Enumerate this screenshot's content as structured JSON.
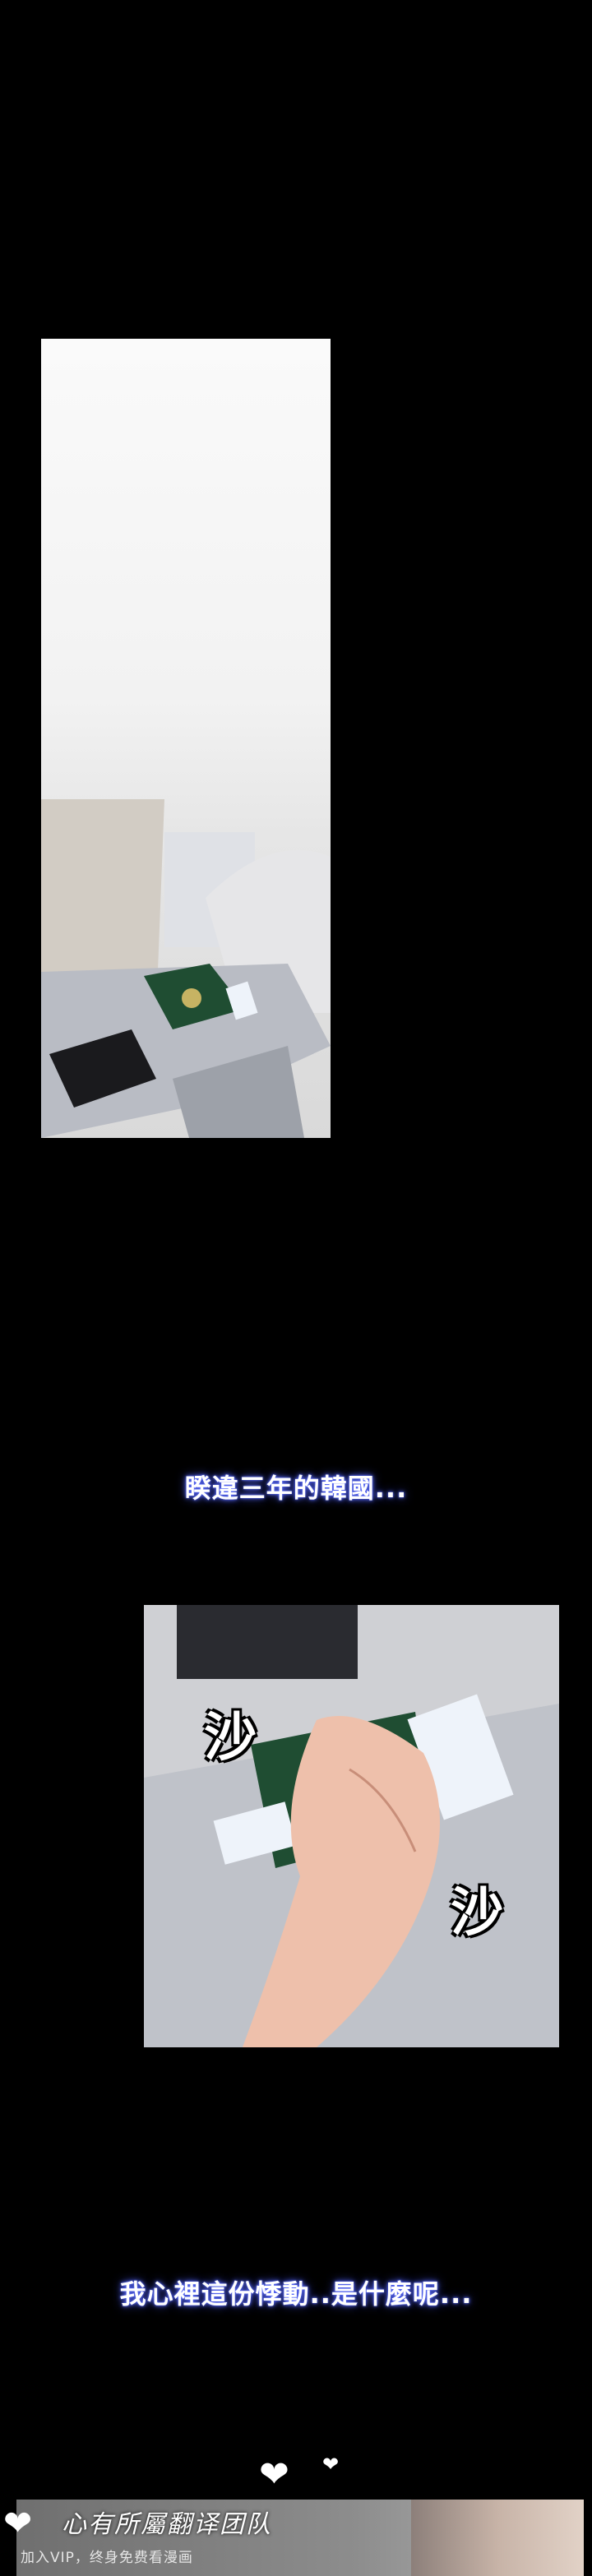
{
  "captions": {
    "first": "睽違三年的韓國...",
    "second": "我心裡這份悸動..是什麼呢..."
  },
  "sfx": {
    "left": "沙",
    "right": "沙"
  },
  "hearts": {
    "large": "❤",
    "small": "❤",
    "banner": "❤"
  },
  "banner": {
    "title": "心有所屬翻译团队",
    "subtitle": "加入VIP，终身免费看漫画"
  },
  "colors": {
    "background": "#000000",
    "caption_glow": "#5a6cff",
    "passport_green": "#1f4d32"
  }
}
